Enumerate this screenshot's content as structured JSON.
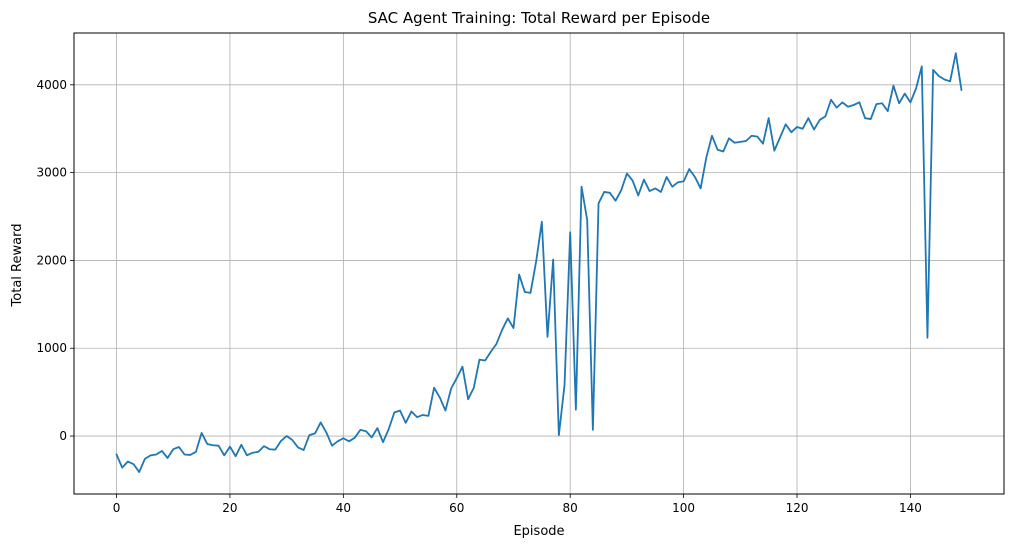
{
  "chart_data": {
    "type": "line",
    "title": "SAC Agent Training: Total Reward per Episode",
    "xlabel": "Episode",
    "ylabel": "Total Reward",
    "xlim": [
      -7.5,
      156.5
    ],
    "ylim": [
      -660,
      4590
    ],
    "xticks": [
      0,
      20,
      40,
      60,
      80,
      100,
      120,
      140
    ],
    "yticks": [
      0,
      1000,
      2000,
      3000,
      4000
    ],
    "grid": true,
    "series": [
      {
        "color": "#1f77b4",
        "x": [
          0,
          1,
          2,
          3,
          4,
          5,
          6,
          7,
          8,
          9,
          10,
          11,
          12,
          13,
          14,
          15,
          16,
          17,
          18,
          19,
          20,
          21,
          22,
          23,
          24,
          25,
          26,
          27,
          28,
          29,
          30,
          31,
          32,
          33,
          34,
          35,
          36,
          37,
          38,
          39,
          40,
          41,
          42,
          43,
          44,
          45,
          46,
          47,
          48,
          49,
          50,
          51,
          52,
          53,
          54,
          55,
          56,
          57,
          58,
          59,
          60,
          61,
          62,
          63,
          64,
          65,
          66,
          67,
          68,
          69,
          70,
          71,
          72,
          73,
          74,
          75,
          76,
          77,
          78,
          79,
          80,
          81,
          82,
          83,
          84,
          85,
          86,
          87,
          88,
          89,
          90,
          91,
          92,
          93,
          94,
          95,
          96,
          97,
          98,
          99,
          100,
          101,
          102,
          103,
          104,
          105,
          106,
          107,
          108,
          109,
          110,
          111,
          112,
          113,
          114,
          115,
          116,
          117,
          118,
          119,
          120,
          121,
          122,
          123,
          124,
          125,
          126,
          127,
          128,
          129,
          130,
          131,
          132,
          133,
          134,
          135,
          136,
          137,
          138,
          139,
          140,
          141,
          142,
          143,
          144,
          145,
          146,
          147,
          148,
          149
        ],
        "values": [
          -210,
          -360,
          -290,
          -320,
          -410,
          -260,
          -220,
          -210,
          -170,
          -250,
          -150,
          -125,
          -210,
          -215,
          -180,
          35,
          -90,
          -105,
          -110,
          -220,
          -120,
          -230,
          -100,
          -220,
          -190,
          -180,
          -115,
          -150,
          -155,
          -55,
          0,
          -45,
          -130,
          -160,
          10,
          30,
          155,
          40,
          -110,
          -60,
          -25,
          -60,
          -20,
          70,
          55,
          -15,
          90,
          -70,
          80,
          270,
          290,
          150,
          280,
          215,
          240,
          230,
          550,
          440,
          290,
          540,
          660,
          790,
          420,
          550,
          870,
          860,
          960,
          1050,
          1210,
          1340,
          1230,
          1840,
          1640,
          1630,
          1990,
          2440,
          1130,
          2010,
          10,
          580,
          2320,
          300,
          2840,
          2460,
          70,
          2650,
          2780,
          2770,
          2680,
          2800,
          2990,
          2910,
          2740,
          2920,
          2790,
          2820,
          2780,
          2950,
          2840,
          2890,
          2900,
          3040,
          2950,
          2820,
          3170,
          3420,
          3260,
          3240,
          3390,
          3340,
          3350,
          3360,
          3420,
          3410,
          3330,
          3620,
          3250,
          3400,
          3550,
          3460,
          3520,
          3500,
          3620,
          3490,
          3600,
          3640,
          3830,
          3740,
          3800,
          3750,
          3770,
          3800,
          3620,
          3610,
          3780,
          3790,
          3700,
          3990,
          3790,
          3900,
          3800,
          3960,
          4210,
          1120,
          4170,
          4100,
          4060,
          4040,
          4360,
          3940
        ]
      }
    ]
  }
}
